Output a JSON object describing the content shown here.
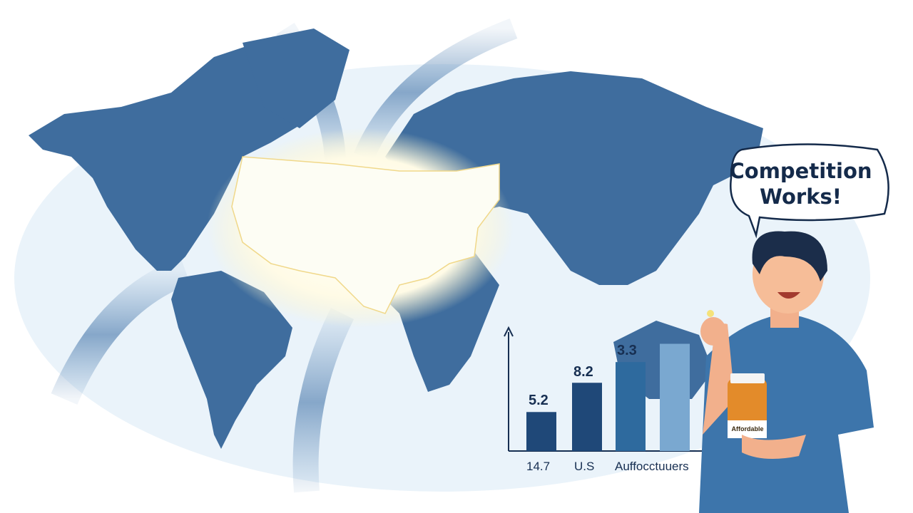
{
  "speech_bubble": {
    "line1": "Competition",
    "line2": "Works!"
  },
  "bottle": {
    "label": "Affordable"
  },
  "chart_data": {
    "type": "bar",
    "title": "",
    "xlabel": "",
    "ylabel": "",
    "x_labels": [
      "14.7",
      "U.S",
      "Auffocctuuers"
    ],
    "bars": [
      {
        "label": "5.2",
        "level": 0.32,
        "color": "#1f4878"
      },
      {
        "label": "8.2",
        "level": 0.56,
        "color": "#1f4878"
      },
      {
        "label": "3.3",
        "level": 0.73,
        "color": "#2e6a9e"
      },
      {
        "label": "",
        "level": 0.88,
        "color": "#7aa8d0"
      }
    ]
  },
  "colors": {
    "map": "#3f6d9e",
    "highlight": "#fdfdf4",
    "background": "#eaf3fa",
    "ink": "#142a4a",
    "shirt": "#3d75ab",
    "skin": "#f2b08c",
    "hair": "#1b2d4a"
  }
}
